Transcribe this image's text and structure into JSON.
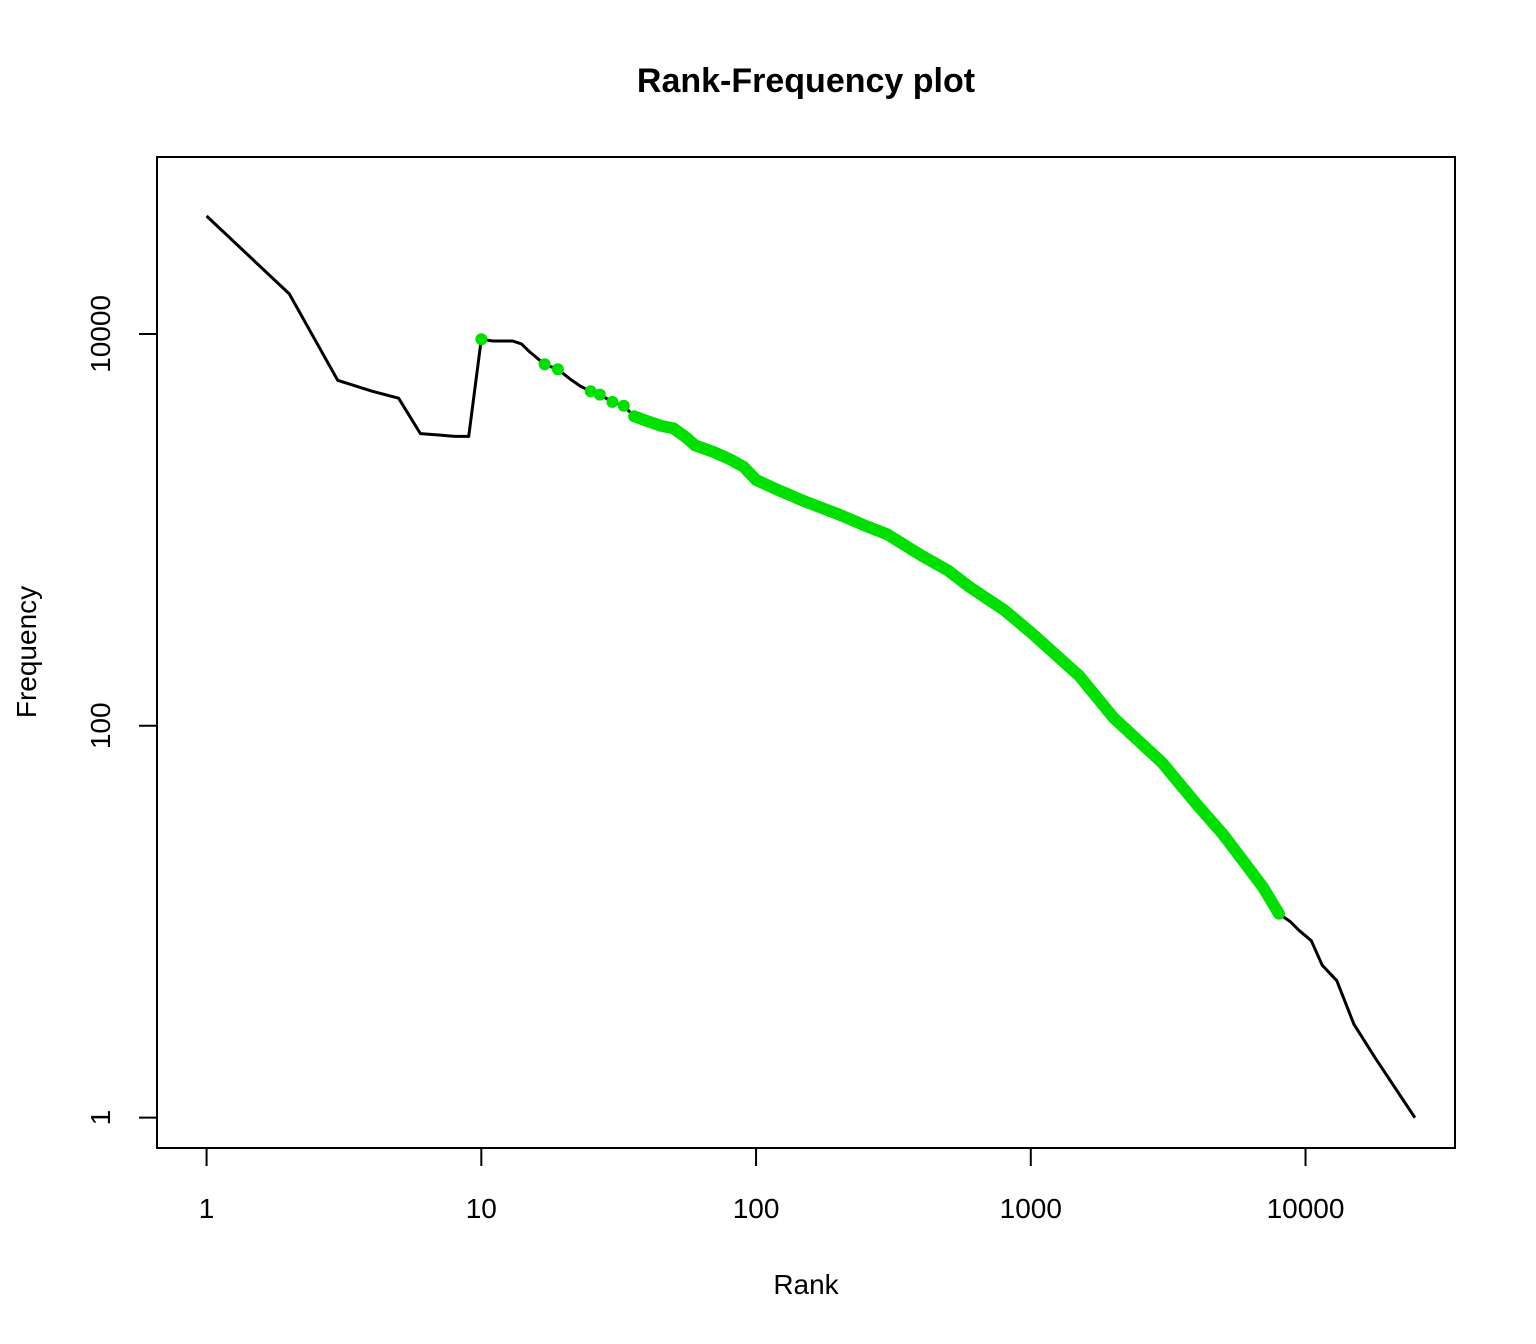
{
  "chart_data": {
    "type": "line",
    "title": "Rank-Frequency plot",
    "xlabel": "Rank",
    "ylabel": "Frequency",
    "xscale": "log",
    "yscale": "log",
    "xlim": [
      0.66,
      35000
    ],
    "ylim": [
      0.7,
      80000
    ],
    "grid": false,
    "legend": "none",
    "x_ticks": [
      1,
      10,
      100,
      1000,
      10000
    ],
    "x_tick_labels": [
      "1",
      "10",
      "100",
      "1000",
      "10000"
    ],
    "y_ticks": [
      1,
      100,
      10000
    ],
    "y_tick_labels": [
      "1",
      "100",
      "10000"
    ],
    "series": [
      {
        "style": "line",
        "color": "#000000",
        "x": [
          1,
          2,
          3,
          4,
          5,
          6,
          7,
          8,
          9,
          10,
          11,
          12,
          13,
          14,
          15,
          17,
          19,
          21,
          23,
          25,
          27,
          30,
          33,
          36,
          40,
          45,
          50,
          55,
          60,
          70,
          80,
          90,
          100,
          120,
          150,
          200,
          250,
          300,
          400,
          500,
          600,
          800,
          1000,
          1500,
          2000,
          3000,
          4000,
          5000,
          6000,
          7000,
          8000,
          8800,
          9500,
          10500,
          11500,
          13000,
          15000,
          18000,
          25000
        ],
        "y": [
          40000,
          16000,
          5800,
          5100,
          4700,
          3100,
          3050,
          3000,
          3000,
          9400,
          9200,
          9200,
          9200,
          8900,
          8100,
          7000,
          6600,
          5900,
          5400,
          5100,
          4900,
          4500,
          4300,
          3800,
          3600,
          3400,
          3300,
          3000,
          2700,
          2500,
          2300,
          2100,
          1800,
          1600,
          1400,
          1200,
          1050,
          950,
          740,
          620,
          510,
          390,
          300,
          180,
          110,
          65,
          40,
          28,
          20,
          15,
          11,
          10,
          9,
          8,
          6,
          5,
          3,
          2,
          1
        ]
      },
      {
        "style": "points",
        "color": "#00e000",
        "x": [
          10,
          17,
          19,
          25,
          27,
          30,
          33,
          36,
          40,
          45,
          50,
          55,
          60,
          70,
          80,
          90,
          100,
          120,
          150,
          200,
          250,
          300,
          400,
          500,
          600,
          800,
          1000,
          1500,
          2000,
          3000,
          4000,
          5000,
          6000,
          7000,
          8000
        ],
        "y": [
          9400,
          7000,
          6600,
          5100,
          4900,
          4500,
          4300,
          3800,
          3600,
          3400,
          3300,
          3000,
          2700,
          2500,
          2300,
          2100,
          1800,
          1600,
          1400,
          1200,
          1050,
          950,
          740,
          620,
          510,
          390,
          300,
          180,
          110,
          65,
          40,
          28,
          20,
          15,
          11
        ]
      }
    ]
  }
}
